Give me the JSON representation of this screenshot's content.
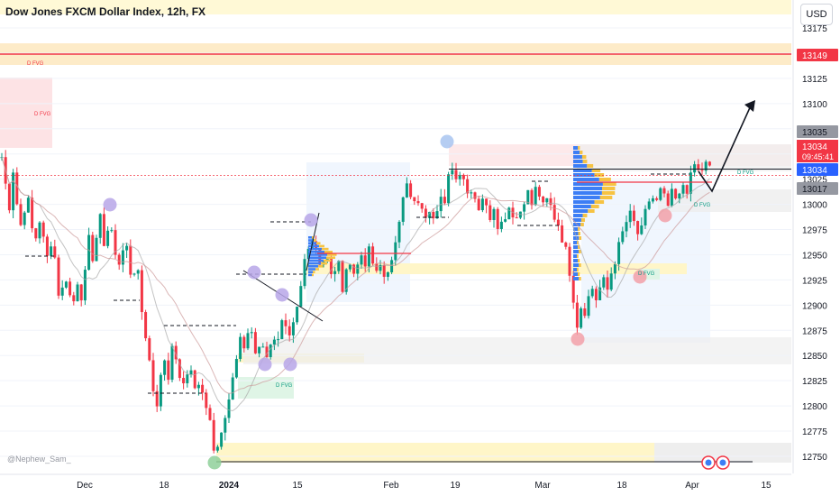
{
  "header": {
    "title": "Dow Jones FXCM Dollar Index, 12h, FX",
    "currency": "USD"
  },
  "watermark": "@Nephew_Sam_",
  "labels": {
    "fvg": "D FVG"
  },
  "price_labels": {
    "upper_line": "13149",
    "resist_top": "13035",
    "current_price": "13034",
    "countdown": "09:45:41",
    "last_price": "13034",
    "resist_bottom": "13017"
  },
  "colors": {
    "bull": "#089981",
    "bear": "#f23645",
    "current": "#f23645",
    "fvg_red": "#fde3e5",
    "fvg_green": "#dff5e6",
    "yellow_zone": "#fff6c8"
  },
  "chart_data": {
    "type": "candlestick",
    "title": "Dow Jones FXCM Dollar Index, 12h, FX",
    "y_ticks": [
      13175,
      13150,
      13125,
      13100,
      13075,
      13050,
      13025,
      13000,
      12975,
      12950,
      12925,
      12900,
      12875,
      12850,
      12825,
      12800,
      12775,
      12750
    ],
    "ylim": [
      12740,
      13185
    ],
    "x_ticks": [
      "Dec",
      "18",
      "2024",
      "15",
      "Feb",
      "19",
      "Mar",
      "18",
      "Apr",
      "15"
    ],
    "price_axis_labels": [
      13149,
      13035,
      13034,
      13017
    ],
    "current_price": 13034,
    "levels": [
      13149,
      13035
    ],
    "ohlc_path": [
      [
        0,
        13060
      ],
      [
        10,
        12995
      ],
      [
        14,
        13040
      ],
      [
        22,
        12975
      ],
      [
        30,
        13010
      ],
      [
        38,
        12960
      ],
      [
        44,
        12985
      ],
      [
        52,
        12945
      ],
      [
        58,
        12970
      ],
      [
        66,
        12905
      ],
      [
        74,
        12930
      ],
      [
        80,
        12895
      ],
      [
        86,
        12925
      ],
      [
        92,
        12905
      ],
      [
        98,
        12965
      ],
      [
        104,
        12945
      ],
      [
        110,
        12990
      ],
      [
        116,
        12960
      ],
      [
        122,
        12985
      ],
      [
        130,
        12935
      ],
      [
        138,
        12965
      ],
      [
        146,
        12925
      ],
      [
        152,
        12945
      ],
      [
        158,
        12890
      ],
      [
        162,
        12870
      ],
      [
        168,
        12825
      ],
      [
        174,
        12800
      ],
      [
        180,
        12850
      ],
      [
        186,
        12825
      ],
      [
        192,
        12860
      ],
      [
        198,
        12835
      ],
      [
        204,
        12820
      ],
      [
        210,
        12840
      ],
      [
        216,
        12815
      ],
      [
        222,
        12830
      ],
      [
        228,
        12800
      ],
      [
        234,
        12790
      ],
      [
        238,
        12755
      ],
      [
        244,
        12765
      ],
      [
        248,
        12780
      ],
      [
        254,
        12800
      ],
      [
        258,
        12830
      ],
      [
        262,
        12845
      ],
      [
        266,
        12870
      ],
      [
        272,
        12855
      ],
      [
        278,
        12880
      ],
      [
        284,
        12850
      ],
      [
        290,
        12870
      ],
      [
        296,
        12845
      ],
      [
        302,
        12875
      ],
      [
        308,
        12860
      ],
      [
        314,
        12885
      ],
      [
        320,
        12860
      ],
      [
        326,
        12880
      ],
      [
        332,
        12905
      ],
      [
        338,
        12945
      ],
      [
        344,
        12970
      ],
      [
        350,
        12960
      ],
      [
        356,
        12940
      ],
      [
        362,
        12950
      ],
      [
        368,
        12925
      ],
      [
        374,
        12945
      ],
      [
        380,
        12920
      ],
      [
        386,
        12945
      ],
      [
        392,
        12930
      ],
      [
        398,
        12950
      ],
      [
        404,
        12935
      ],
      [
        410,
        12955
      ],
      [
        416,
        12930
      ],
      [
        422,
        12945
      ],
      [
        428,
        12915
      ],
      [
        434,
        12945
      ],
      [
        440,
        12975
      ],
      [
        446,
        13000
      ],
      [
        452,
        13020
      ],
      [
        458,
        12995
      ],
      [
        464,
        13005
      ],
      [
        470,
        12985
      ],
      [
        476,
        13000
      ],
      [
        482,
        12990
      ],
      [
        488,
        13010
      ],
      [
        494,
        12995
      ],
      [
        500,
        13045
      ],
      [
        506,
        13025
      ],
      [
        512,
        13040
      ],
      [
        518,
        13010
      ],
      [
        524,
        13020
      ],
      [
        530,
        12995
      ],
      [
        536,
        13010
      ],
      [
        542,
        12985
      ],
      [
        548,
        13000
      ],
      [
        554,
        12975
      ],
      [
        560,
        12990
      ],
      [
        566,
        13000
      ],
      [
        572,
        12985
      ],
      [
        578,
        12995
      ],
      [
        584,
        13015
      ],
      [
        590,
        13000
      ],
      [
        596,
        13020
      ],
      [
        602,
        12995
      ],
      [
        608,
        13005
      ],
      [
        614,
        12990
      ],
      [
        620,
        12980
      ],
      [
        626,
        12960
      ],
      [
        632,
        12935
      ],
      [
        636,
        12910
      ],
      [
        640,
        12880
      ],
      [
        644,
        12900
      ],
      [
        650,
        12895
      ],
      [
        656,
        12920
      ],
      [
        662,
        12905
      ],
      [
        668,
        12925
      ],
      [
        674,
        12915
      ],
      [
        680,
        12940
      ],
      [
        686,
        12955
      ],
      [
        692,
        12975
      ],
      [
        698,
        12990
      ],
      [
        704,
        12980
      ],
      [
        710,
        12965
      ],
      [
        716,
        12990
      ],
      [
        722,
        13010
      ],
      [
        728,
        13000
      ],
      [
        734,
        13015
      ],
      [
        740,
        12995
      ],
      [
        746,
        13010
      ],
      [
        752,
        13000
      ],
      [
        758,
        13020
      ],
      [
        764,
        13015
      ],
      [
        770,
        13040
      ],
      [
        776,
        13030
      ],
      [
        782,
        13040
      ],
      [
        788,
        13034
      ]
    ]
  }
}
